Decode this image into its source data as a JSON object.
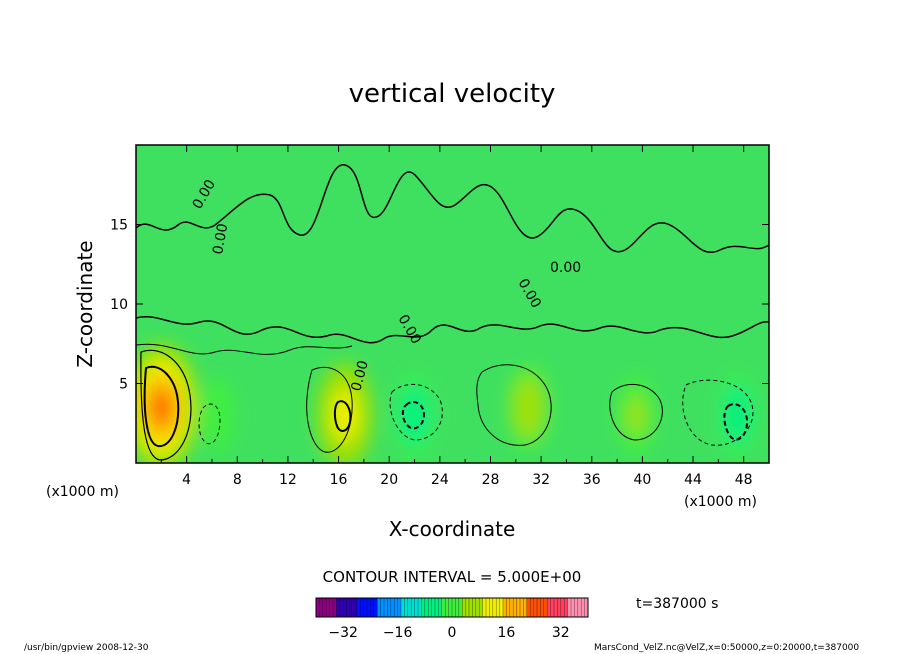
{
  "chart_data": {
    "type": "heatmap",
    "title": "vertical velocity",
    "xlabel": "X-coordinate",
    "ylabel": "Z-coordinate",
    "x_unit": "(x1000 m)",
    "x_unit_right": "(x1000 m)",
    "xlim": [
      0,
      50
    ],
    "ylim": [
      0,
      20
    ],
    "x_ticks": [
      "4",
      "8",
      "12",
      "16",
      "20",
      "24",
      "28",
      "32",
      "36",
      "40",
      "44",
      "48"
    ],
    "y_ticks": [
      "5",
      "10",
      "15"
    ],
    "contour_interval_text": "CONTOUR INTERVAL = 5.000E+00",
    "contour_label": "0.00",
    "colorbar": {
      "range": [
        -40,
        40
      ],
      "ticks": [
        "−32",
        "−16",
        "0",
        "16",
        "32"
      ],
      "colors": [
        "#8a007f",
        "#3000b0",
        "#0010ff",
        "#0090ff",
        "#00e0d0",
        "#00f080",
        "#40ee40",
        "#a0e000",
        "#f0f000",
        "#ffb000",
        "#ff5000",
        "#ff4060",
        "#ff90b0"
      ]
    },
    "time_text": "t=387000 s",
    "features": [
      {
        "type": "updraft",
        "x": 2.0,
        "z": 3.5,
        "peak": 25
      },
      {
        "type": "updraft",
        "x": 16.5,
        "z": 3.0,
        "peak": 15
      },
      {
        "type": "updraft",
        "x": 31.0,
        "z": 3.5,
        "peak": 8
      },
      {
        "type": "updraft",
        "x": 39.5,
        "z": 3.0,
        "peak": 6
      },
      {
        "type": "downdraft",
        "x": 22.0,
        "z": 3.0,
        "peak": -8
      },
      {
        "type": "downdraft",
        "x": 47.5,
        "z": 3.0,
        "peak": -7
      },
      {
        "type": "downdraft",
        "x": 6.5,
        "z": 3.0,
        "peak": -3
      }
    ]
  },
  "footer": {
    "left": "/usr/bin/gpview   2008-12-30",
    "right": "MarsCond_VelZ.nc@VelZ,x=0:50000,z=0:20000,t=387000"
  }
}
